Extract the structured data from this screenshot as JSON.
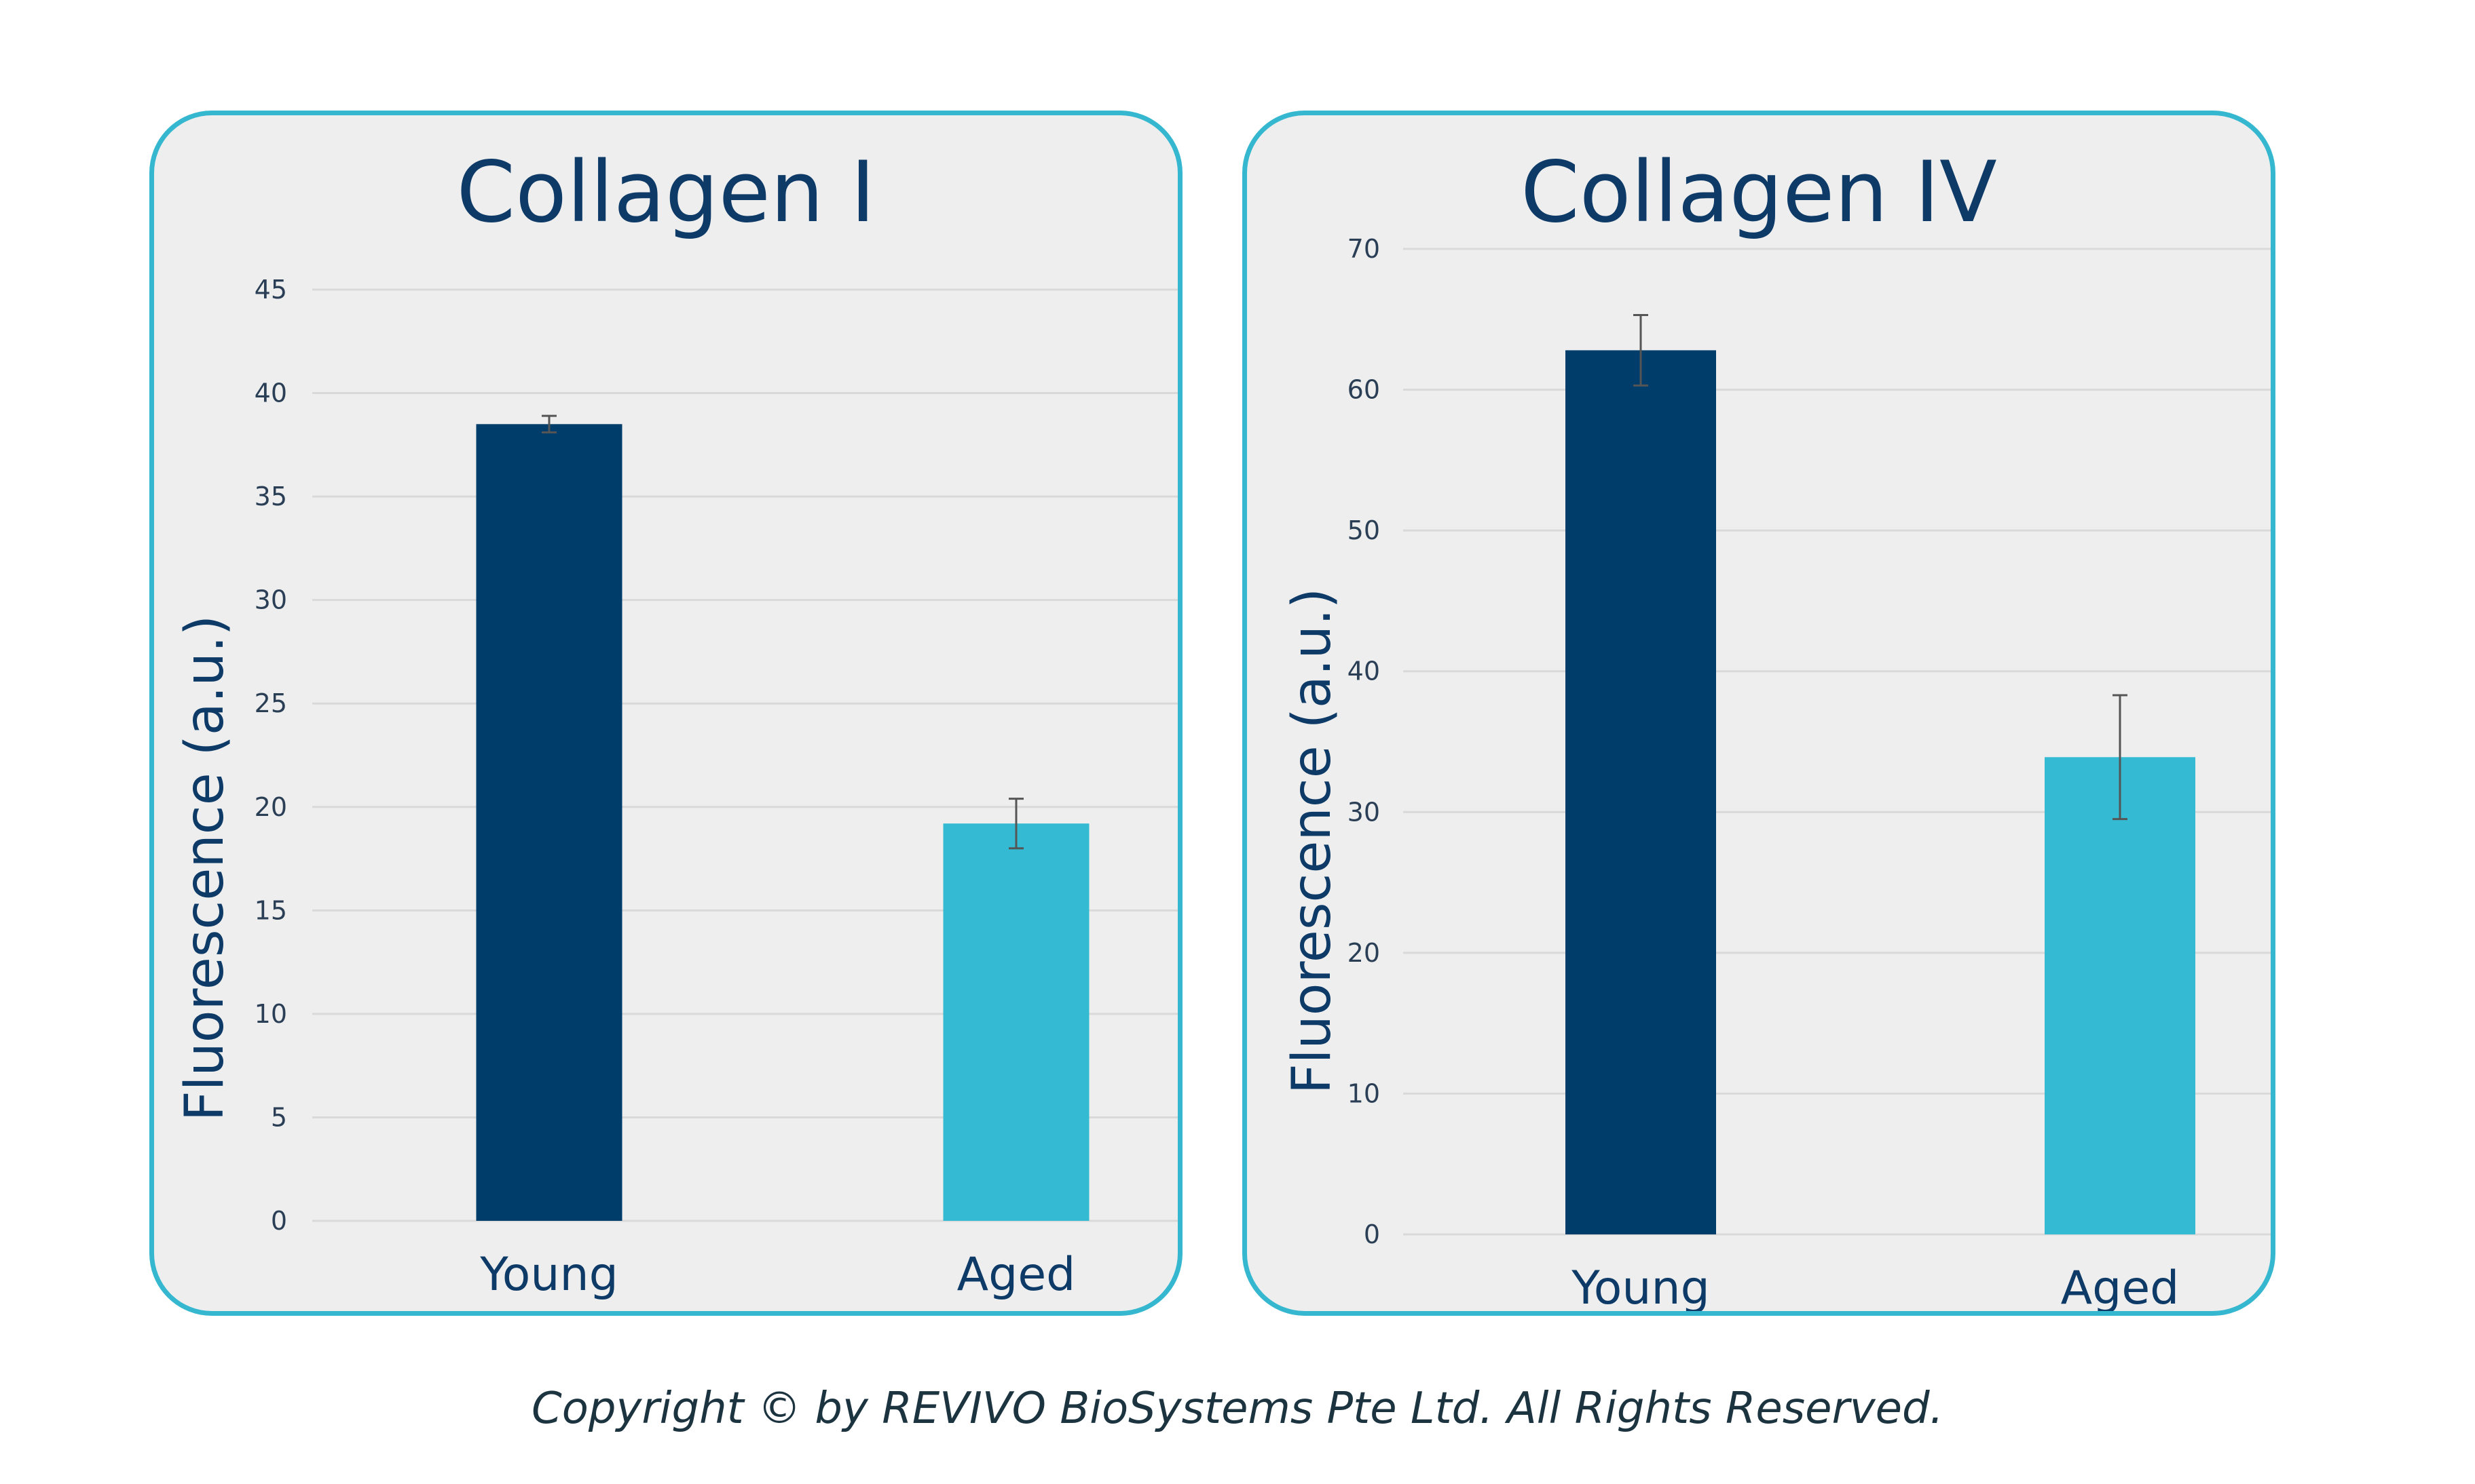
{
  "chart_data": [
    {
      "type": "bar",
      "title": "Collagen I",
      "ylabel": "Fluorescence (a.u.)",
      "xlabel": "",
      "categories": [
        "Young",
        "Aged"
      ],
      "values": [
        38.5,
        19.2
      ],
      "errors": [
        0.4,
        1.2
      ],
      "bar_colors": [
        "#003d6b",
        "#35bad3"
      ],
      "ylim": [
        0,
        45
      ],
      "yticks": [
        0,
        5,
        10,
        15,
        20,
        25,
        30,
        35,
        40,
        45
      ],
      "grid": true
    },
    {
      "type": "bar",
      "title": "Collagen IV",
      "ylabel": "Fluorescence (a.u.)",
      "xlabel": "",
      "categories": [
        "Young",
        "Aged"
      ],
      "values": [
        62.8,
        33.9
      ],
      "errors": [
        2.5,
        4.4
      ],
      "bar_colors": [
        "#003d6b",
        "#35bad3"
      ],
      "ylim": [
        0,
        70
      ],
      "yticks": [
        0,
        10,
        20,
        30,
        40,
        50,
        60,
        70
      ],
      "grid": true
    }
  ],
  "footer": "Copyright © by REVIVO BioSystems Pte Ltd. All Rights Reserved.",
  "colors": {
    "panel_border": "#35b7cf",
    "panel_background": "#eeeeee",
    "title_text": "#0d3a66",
    "young_bar": "#003d6b",
    "aged_bar": "#35bad3"
  }
}
